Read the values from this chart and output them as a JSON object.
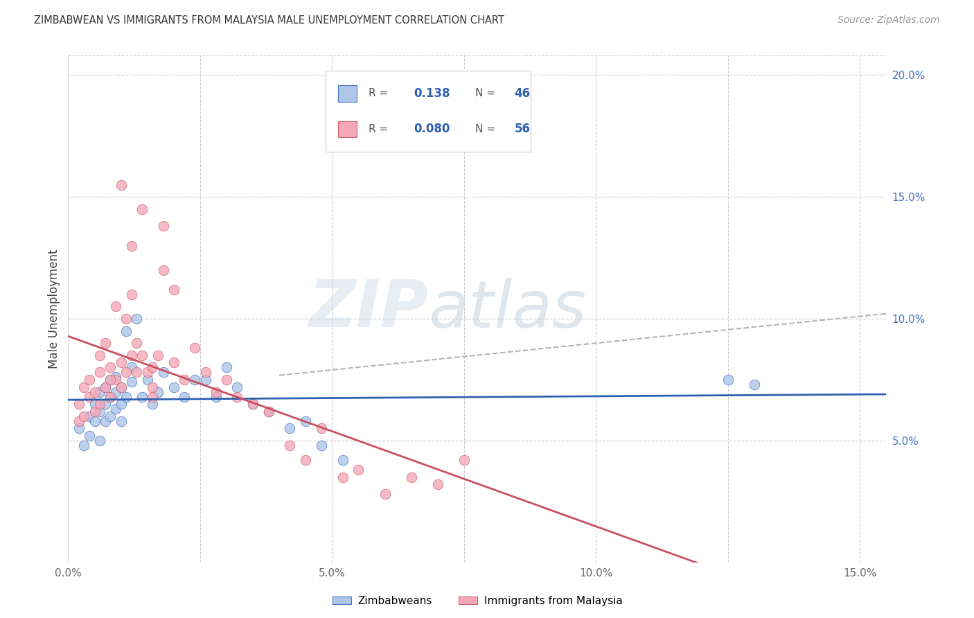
{
  "title": "ZIMBABWEAN VS IMMIGRANTS FROM MALAYSIA MALE UNEMPLOYMENT CORRELATION CHART",
  "source": "Source: ZipAtlas.com",
  "ylabel": "Male Unemployment",
  "x_label_legend": "Zimbabweans",
  "x_label_legend2": "Immigrants from Malaysia",
  "r1_val": "0.138",
  "n1_val": "46",
  "r2_val": "0.080",
  "n2_val": "56",
  "xlim": [
    0.0,
    0.155
  ],
  "ylim": [
    0.0,
    0.208
  ],
  "x_ticks": [
    0.0,
    0.025,
    0.05,
    0.075,
    0.1,
    0.125,
    0.15
  ],
  "x_tick_labels": [
    "0.0%",
    "",
    "5.0%",
    "",
    "10.0%",
    "",
    "15.0%"
  ],
  "y_ticks_right": [
    0.05,
    0.1,
    0.15,
    0.2
  ],
  "y_tick_labels_right": [
    "5.0%",
    "10.0%",
    "15.0%",
    "20.0%"
  ],
  "color_blue_fill": "#aec6e8",
  "color_blue_edge": "#4472c4",
  "color_pink_fill": "#f4a8b8",
  "color_pink_edge": "#d06070",
  "color_blue_line": "#3060b0",
  "color_pink_line": "#c85060",
  "color_dashed": "#b8b0b8",
  "watermark_zip": "ZIP",
  "watermark_atlas": "atlas",
  "blue_x": [
    0.002,
    0.003,
    0.004,
    0.004,
    0.005,
    0.005,
    0.006,
    0.006,
    0.006,
    0.007,
    0.007,
    0.007,
    0.008,
    0.008,
    0.008,
    0.009,
    0.009,
    0.009,
    0.01,
    0.01,
    0.01,
    0.011,
    0.011,
    0.012,
    0.012,
    0.013,
    0.014,
    0.015,
    0.016,
    0.017,
    0.018,
    0.02,
    0.022,
    0.024,
    0.026,
    0.028,
    0.03,
    0.032,
    0.035,
    0.038,
    0.042,
    0.045,
    0.048,
    0.052,
    0.125,
    0.13
  ],
  "blue_y": [
    0.055,
    0.048,
    0.06,
    0.052,
    0.058,
    0.065,
    0.05,
    0.062,
    0.07,
    0.058,
    0.065,
    0.072,
    0.06,
    0.068,
    0.075,
    0.063,
    0.07,
    0.076,
    0.058,
    0.065,
    0.072,
    0.068,
    0.095,
    0.074,
    0.08,
    0.1,
    0.068,
    0.075,
    0.065,
    0.07,
    0.078,
    0.072,
    0.068,
    0.075,
    0.075,
    0.068,
    0.08,
    0.072,
    0.065,
    0.062,
    0.055,
    0.058,
    0.048,
    0.042,
    0.075,
    0.073
  ],
  "pink_x": [
    0.002,
    0.002,
    0.003,
    0.003,
    0.004,
    0.004,
    0.005,
    0.005,
    0.006,
    0.006,
    0.006,
    0.007,
    0.007,
    0.008,
    0.008,
    0.009,
    0.009,
    0.01,
    0.01,
    0.011,
    0.011,
    0.012,
    0.012,
    0.013,
    0.013,
    0.014,
    0.015,
    0.016,
    0.017,
    0.018,
    0.02,
    0.022,
    0.024,
    0.026,
    0.028,
    0.03,
    0.032,
    0.035,
    0.038,
    0.042,
    0.045,
    0.048,
    0.052,
    0.055,
    0.06,
    0.065,
    0.07,
    0.075,
    0.01,
    0.012,
    0.008,
    0.016,
    0.02,
    0.016,
    0.014,
    0.018
  ],
  "pink_y": [
    0.058,
    0.065,
    0.072,
    0.06,
    0.068,
    0.075,
    0.062,
    0.07,
    0.078,
    0.065,
    0.085,
    0.072,
    0.09,
    0.068,
    0.08,
    0.075,
    0.105,
    0.072,
    0.082,
    0.078,
    0.1,
    0.085,
    0.11,
    0.078,
    0.09,
    0.085,
    0.078,
    0.072,
    0.085,
    0.138,
    0.082,
    0.075,
    0.088,
    0.078,
    0.07,
    0.075,
    0.068,
    0.065,
    0.062,
    0.048,
    0.042,
    0.055,
    0.035,
    0.038,
    0.028,
    0.035,
    0.032,
    0.042,
    0.155,
    0.13,
    0.075,
    0.08,
    0.112,
    0.068,
    0.145,
    0.12
  ]
}
